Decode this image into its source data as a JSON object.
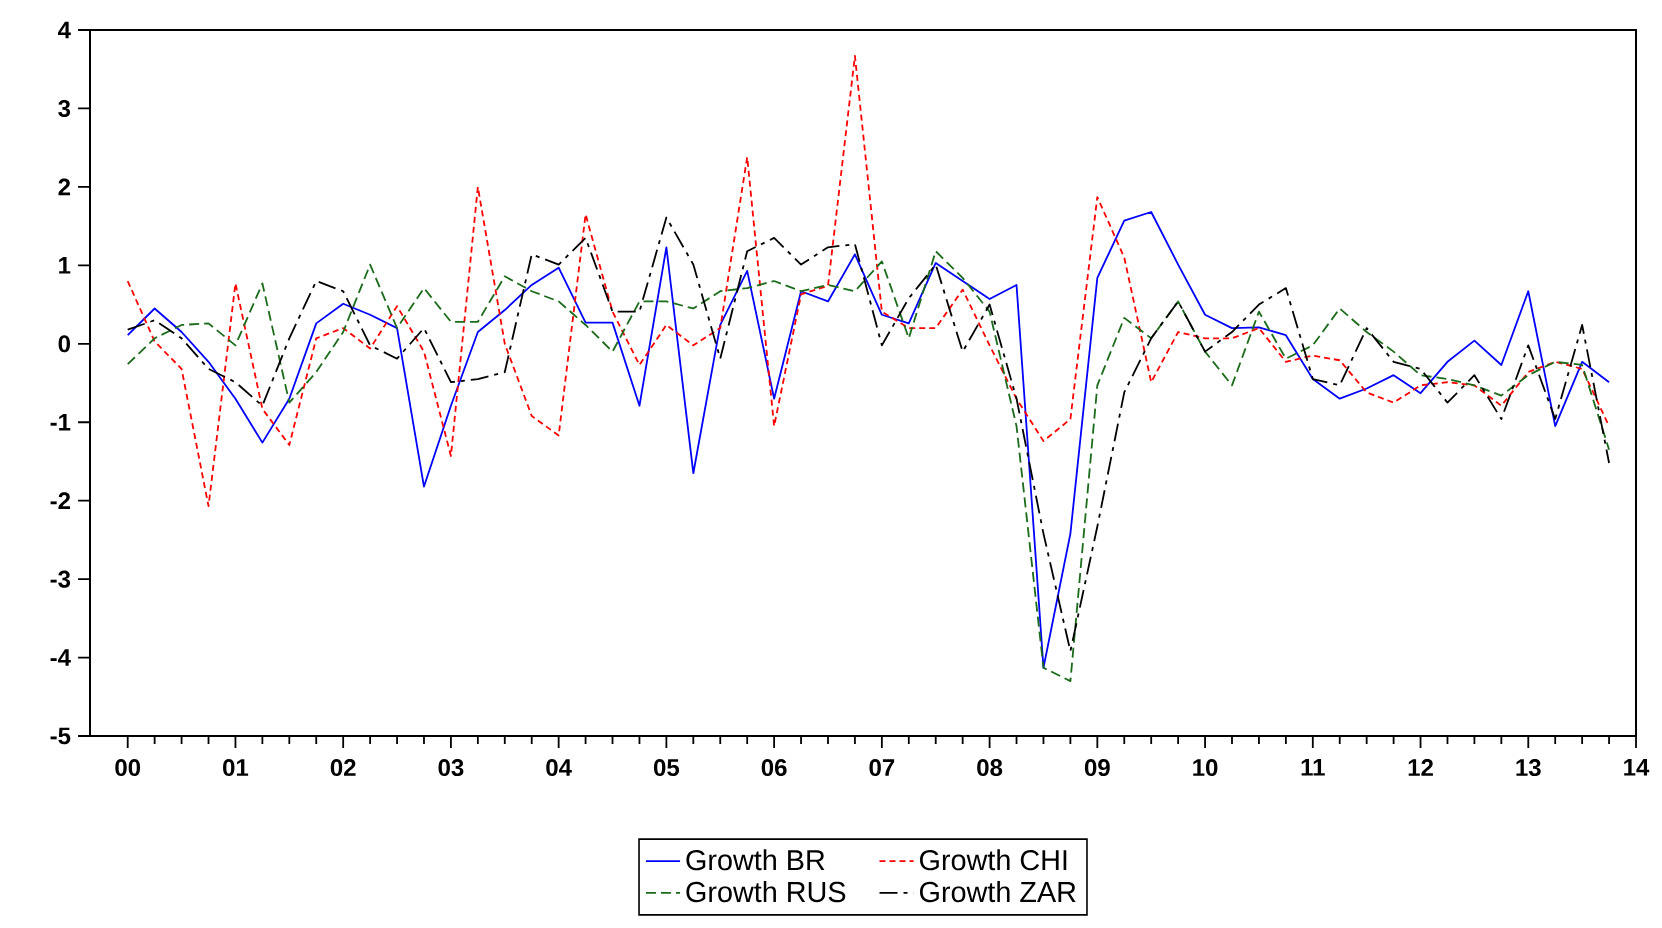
{
  "chart_data": {
    "type": "line",
    "x": [
      2000.0,
      2000.25,
      2000.5,
      2000.75,
      2001.0,
      2001.25,
      2001.5,
      2001.75,
      2002.0,
      2002.25,
      2002.5,
      2002.75,
      2003.0,
      2003.25,
      2003.5,
      2003.75,
      2004.0,
      2004.25,
      2004.5,
      2004.75,
      2005.0,
      2005.25,
      2005.5,
      2005.75,
      2006.0,
      2006.25,
      2006.5,
      2006.75,
      2007.0,
      2007.25,
      2007.5,
      2007.75,
      2008.0,
      2008.25,
      2008.5,
      2008.75,
      2009.0,
      2009.25,
      2009.5,
      2009.75,
      2010.0,
      2010.25,
      2010.5,
      2010.75,
      2011.0,
      2011.25,
      2011.5,
      2011.75,
      2012.0,
      2012.25,
      2012.5,
      2012.75,
      2013.0,
      2013.25,
      2013.5,
      2013.75
    ],
    "series": [
      {
        "name": "Growth BR",
        "color": "#0000ff",
        "line_style": "solid",
        "values": [
          0.11,
          0.45,
          0.15,
          -0.23,
          -0.7,
          -1.26,
          -0.7,
          0.26,
          0.51,
          0.37,
          0.2,
          -1.82,
          -0.79,
          0.15,
          0.43,
          0.75,
          0.97,
          0.27,
          0.27,
          -0.79,
          1.23,
          -1.65,
          0.24,
          0.93,
          -0.7,
          0.67,
          0.54,
          1.14,
          0.37,
          0.26,
          1.03,
          0.8,
          0.57,
          0.75,
          -4.13,
          -2.42,
          0.84,
          1.57,
          1.68,
          1.01,
          0.37,
          0.2,
          0.21,
          0.11,
          -0.45,
          -0.7,
          -0.57,
          -0.4,
          -0.63,
          -0.23,
          0.04,
          -0.27,
          0.67,
          -1.05,
          -0.23,
          -0.49
        ]
      },
      {
        "name": "Growth CHI",
        "color": "#ff0000",
        "line_style": "dotted",
        "values": [
          0.8,
          0.03,
          -0.32,
          -2.07,
          0.77,
          -0.83,
          -1.29,
          0.07,
          0.2,
          -0.06,
          0.48,
          -0.1,
          -1.43,
          2.0,
          0.0,
          -0.92,
          -1.17,
          1.65,
          0.41,
          -0.27,
          0.24,
          -0.02,
          0.2,
          2.38,
          -1.05,
          0.63,
          0.74,
          3.67,
          0.41,
          0.2,
          0.2,
          0.69,
          -0.02,
          -0.7,
          -1.24,
          -0.96,
          1.87,
          1.1,
          -0.49,
          0.15,
          0.07,
          0.07,
          0.2,
          -0.23,
          -0.15,
          -0.21,
          -0.62,
          -0.75,
          -0.53,
          -0.49,
          -0.53,
          -0.79,
          -0.36,
          -0.23,
          -0.32,
          -1.05
        ]
      },
      {
        "name": "Growth RUS",
        "color": "#1a6b1a",
        "line_style": "dashed",
        "values": [
          -0.26,
          0.07,
          0.24,
          0.26,
          -0.02,
          0.77,
          -0.75,
          -0.36,
          0.15,
          1.01,
          0.2,
          0.71,
          0.28,
          0.28,
          0.86,
          0.67,
          0.54,
          0.24,
          -0.1,
          0.54,
          0.54,
          0.45,
          0.67,
          0.71,
          0.8,
          0.67,
          0.75,
          0.67,
          1.05,
          0.07,
          1.18,
          0.84,
          0.41,
          -1.05,
          -4.13,
          -4.3,
          -0.53,
          0.33,
          0.07,
          0.54,
          -0.1,
          -0.53,
          0.41,
          -0.19,
          -0.02,
          0.45,
          0.15,
          -0.1,
          -0.4,
          -0.45,
          -0.53,
          -0.66,
          -0.4,
          -0.23,
          -0.27,
          -1.35
        ]
      },
      {
        "name": "Growth ZAR",
        "color": "#000000",
        "line_style": "dashdot",
        "values": [
          0.18,
          0.3,
          0.07,
          -0.32,
          -0.49,
          -0.79,
          0.07,
          0.8,
          0.67,
          -0.02,
          -0.19,
          0.2,
          -0.49,
          -0.45,
          -0.36,
          1.14,
          1.01,
          1.35,
          0.41,
          0.41,
          1.61,
          1.01,
          -0.19,
          1.18,
          1.35,
          1.01,
          1.23,
          1.27,
          -0.02,
          0.58,
          1.01,
          -0.1,
          0.5,
          -0.7,
          -2.42,
          -3.92,
          -2.33,
          -0.62,
          0.07,
          0.54,
          -0.1,
          0.15,
          0.5,
          0.71,
          -0.45,
          -0.53,
          0.2,
          -0.23,
          -0.32,
          -0.75,
          -0.4,
          -0.96,
          -0.02,
          -0.96,
          0.24,
          -1.52
        ]
      }
    ],
    "xlim": [
      1999.65,
      2014.0
    ],
    "xticks": [
      {
        "value": 2000,
        "label": "00"
      },
      {
        "value": 2001,
        "label": "01"
      },
      {
        "value": 2002,
        "label": "02"
      },
      {
        "value": 2003,
        "label": "03"
      },
      {
        "value": 2004,
        "label": "04"
      },
      {
        "value": 2005,
        "label": "05"
      },
      {
        "value": 2006,
        "label": "06"
      },
      {
        "value": 2007,
        "label": "07"
      },
      {
        "value": 2008,
        "label": "08"
      },
      {
        "value": 2009,
        "label": "09"
      },
      {
        "value": 2010,
        "label": "10"
      },
      {
        "value": 2011,
        "label": "11"
      },
      {
        "value": 2012,
        "label": "12"
      },
      {
        "value": 2013,
        "label": "13"
      },
      {
        "value": 2014,
        "label": "14"
      }
    ],
    "ylim": [
      -5,
      4
    ],
    "yticks": [
      -5,
      -4,
      -3,
      -2,
      -1,
      0,
      1,
      2,
      3,
      4
    ],
    "legend": "bottom",
    "grid": false
  }
}
